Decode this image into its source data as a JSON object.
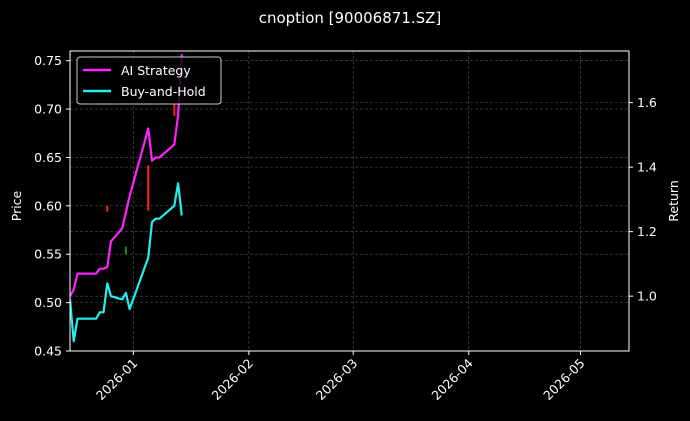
{
  "chart_data": {
    "type": "line",
    "title": "cnoption [90006871.SZ]",
    "xlabel": "",
    "ylabel": "Price",
    "ylabel_right": "Return",
    "xlim": [
      "2025-12-15",
      "2026-05-14"
    ],
    "ylim": [
      0.45,
      0.76
    ],
    "ylim_right": [
      0.83,
      1.76
    ],
    "grid": true,
    "legend_position": "upper left",
    "x_ticks": [
      "2026-01",
      "2026-02",
      "2026-03",
      "2026-04",
      "2026-05"
    ],
    "y_ticks": [
      "0.45",
      "0.50",
      "0.55",
      "0.60",
      "0.65",
      "0.70",
      "0.75"
    ],
    "y_ticks_right": [
      "1.0",
      "1.2",
      "1.4",
      "1.6"
    ],
    "series": [
      {
        "name": "AI Strategy",
        "axis": "right",
        "color": "#ff22ff",
        "x": [
          "2025-12-15",
          "2025-12-16",
          "2025-12-17",
          "2025-12-18",
          "2025-12-19",
          "2025-12-22",
          "2025-12-23",
          "2025-12-24",
          "2025-12-25",
          "2025-12-26",
          "2025-12-29",
          "2025-12-30",
          "2025-12-31",
          "2026-01-05",
          "2026-01-06",
          "2026-01-07",
          "2026-01-08",
          "2026-01-12",
          "2026-01-13",
          "2026-01-14"
        ],
        "values": [
          1.0,
          1.02,
          1.07,
          1.07,
          1.07,
          1.07,
          1.085,
          1.085,
          1.09,
          1.17,
          1.21,
          1.26,
          1.31,
          1.52,
          1.42,
          1.43,
          1.43,
          1.47,
          1.56,
          1.75
        ]
      },
      {
        "name": "Buy-and-Hold",
        "axis": "right",
        "color": "#22eeee",
        "x": [
          "2025-12-15",
          "2025-12-16",
          "2025-12-17",
          "2025-12-18",
          "2025-12-19",
          "2025-12-22",
          "2025-12-23",
          "2025-12-24",
          "2025-12-25",
          "2025-12-26",
          "2025-12-29",
          "2025-12-30",
          "2025-12-31",
          "2026-01-05",
          "2026-01-06",
          "2026-01-07",
          "2026-01-08",
          "2026-01-12",
          "2026-01-13",
          "2026-01-14"
        ],
        "values": [
          0.99,
          0.86,
          0.93,
          0.93,
          0.93,
          0.93,
          0.95,
          0.95,
          1.04,
          1.0,
          0.99,
          1.01,
          0.96,
          1.12,
          1.23,
          1.24,
          1.24,
          1.28,
          1.35,
          1.25
        ]
      }
    ],
    "annotations": [
      {
        "type": "sell-marker",
        "color": "#ff2222",
        "x": "2025-12-25",
        "price_range": [
          0.594,
          0.6
        ]
      },
      {
        "type": "buy-marker",
        "color": "#228822",
        "x": "2025-12-30",
        "price_range": [
          0.55,
          0.558
        ]
      },
      {
        "type": "sell-marker",
        "color": "#ff2222",
        "x": "2026-01-05",
        "price_range": [
          0.595,
          0.642
        ]
      },
      {
        "type": "sell-marker",
        "color": "#ff2222",
        "x": "2026-01-12",
        "price_range": [
          0.693,
          0.705
        ]
      }
    ]
  },
  "figure": {
    "title": "cnoption [90006871.SZ]",
    "background": "#000000",
    "grid_color": "#555555",
    "axis_color": "#ffffff"
  }
}
